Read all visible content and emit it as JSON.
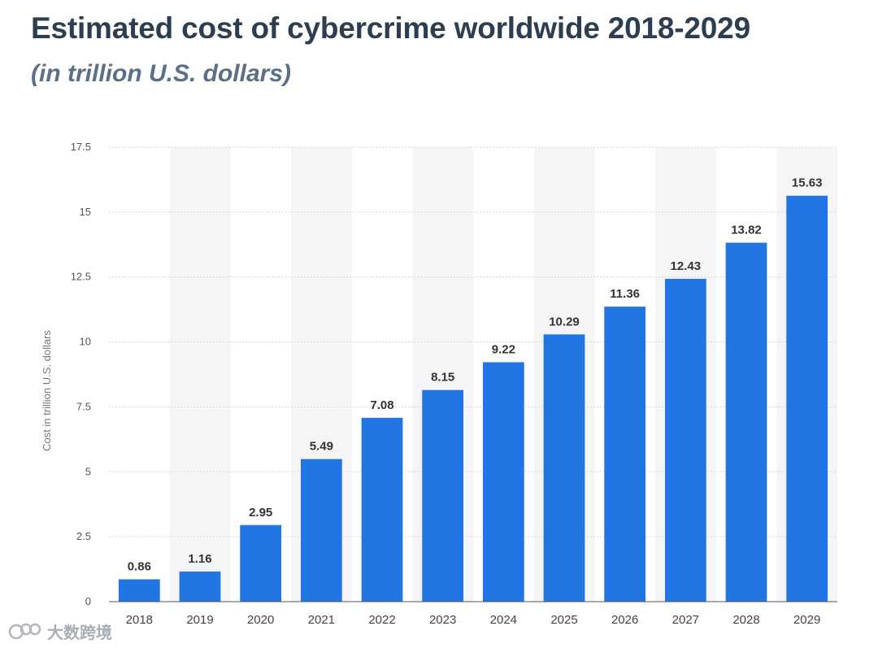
{
  "header": {
    "title": "Estimated cost of cybercrime worldwide 2018-2029",
    "subtitle": "(in trillion U.S. dollars)"
  },
  "watermark": {
    "text": "大数跨境"
  },
  "colors": {
    "bar": "#2176e4",
    "stripe": "#f5f5f7",
    "grid": "#d6d6d6",
    "title": "#2c3e50"
  },
  "chart_data": {
    "type": "bar",
    "title": "Estimated cost of cybercrime worldwide 2018-2029",
    "subtitle": "(in trillion U.S. dollars)",
    "xlabel": "",
    "ylabel": "Cost in trillion U.S. dollars",
    "ylim": [
      0,
      17.5
    ],
    "yticks": [
      0,
      2.5,
      5,
      7.5,
      10,
      12.5,
      15,
      17.5
    ],
    "ytick_labels": [
      "0",
      "2.5",
      "5",
      "7.5",
      "10",
      "12.5",
      "15",
      "17.5"
    ],
    "grid": true,
    "categories": [
      "2018",
      "2019",
      "2020",
      "2021",
      "2022",
      "2023",
      "2024",
      "2025",
      "2026",
      "2027",
      "2028",
      "2029"
    ],
    "values": [
      0.86,
      1.16,
      2.95,
      5.49,
      7.08,
      8.15,
      9.22,
      10.29,
      11.36,
      12.43,
      13.82,
      15.63
    ],
    "value_labels": [
      "0.86",
      "1.16",
      "2.95",
      "5.49",
      "7.08",
      "8.15",
      "9.22",
      "10.29",
      "11.36",
      "12.43",
      "13.82",
      "15.63"
    ]
  }
}
